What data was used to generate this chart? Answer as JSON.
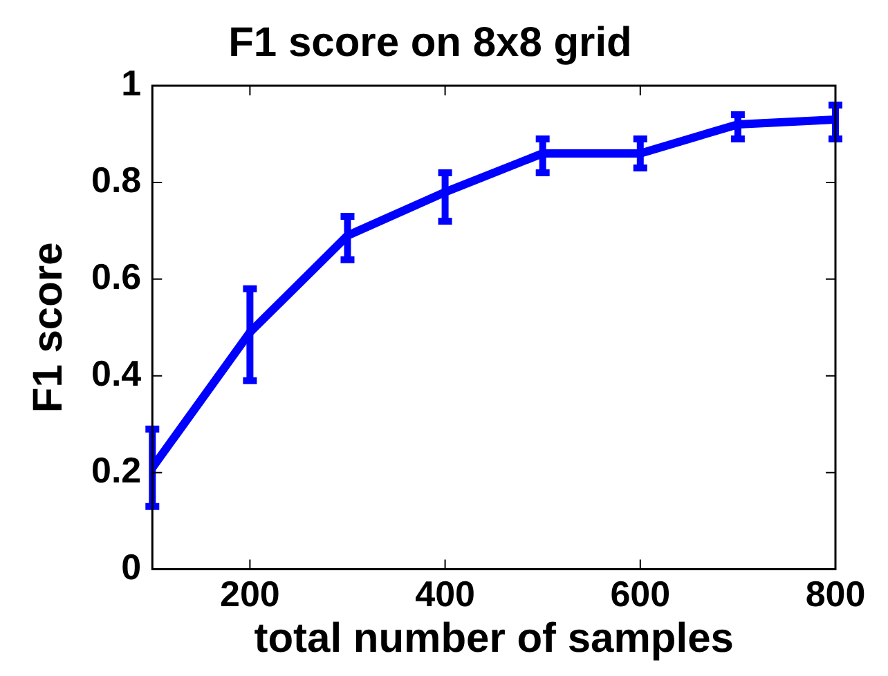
{
  "chart_data": {
    "type": "line",
    "title": "F1 score on 8x8 grid",
    "xlabel": "total number of samples",
    "ylabel": "F1 score",
    "x": [
      100,
      200,
      300,
      400,
      500,
      600,
      700,
      800
    ],
    "series": [
      {
        "color": "#0000ff",
        "values": [
          0.21,
          0.49,
          0.69,
          0.78,
          0.86,
          0.86,
          0.92,
          0.93
        ],
        "errors": [
          [
            0.13,
            0.29
          ],
          [
            0.39,
            0.58
          ],
          [
            0.64,
            0.73
          ],
          [
            0.72,
            0.82
          ],
          [
            0.82,
            0.89
          ],
          [
            0.83,
            0.89
          ],
          [
            0.89,
            0.94
          ],
          [
            0.89,
            0.96
          ]
        ]
      }
    ],
    "xlim": [
      100,
      800
    ],
    "xticks": [
      200,
      400,
      600,
      800
    ],
    "ylim": [
      0,
      1
    ],
    "yticks": [
      0,
      0.2,
      0.4,
      0.6,
      0.8,
      1
    ],
    "marker": "none",
    "line_style": "solid",
    "legend": false,
    "grid": false
  }
}
